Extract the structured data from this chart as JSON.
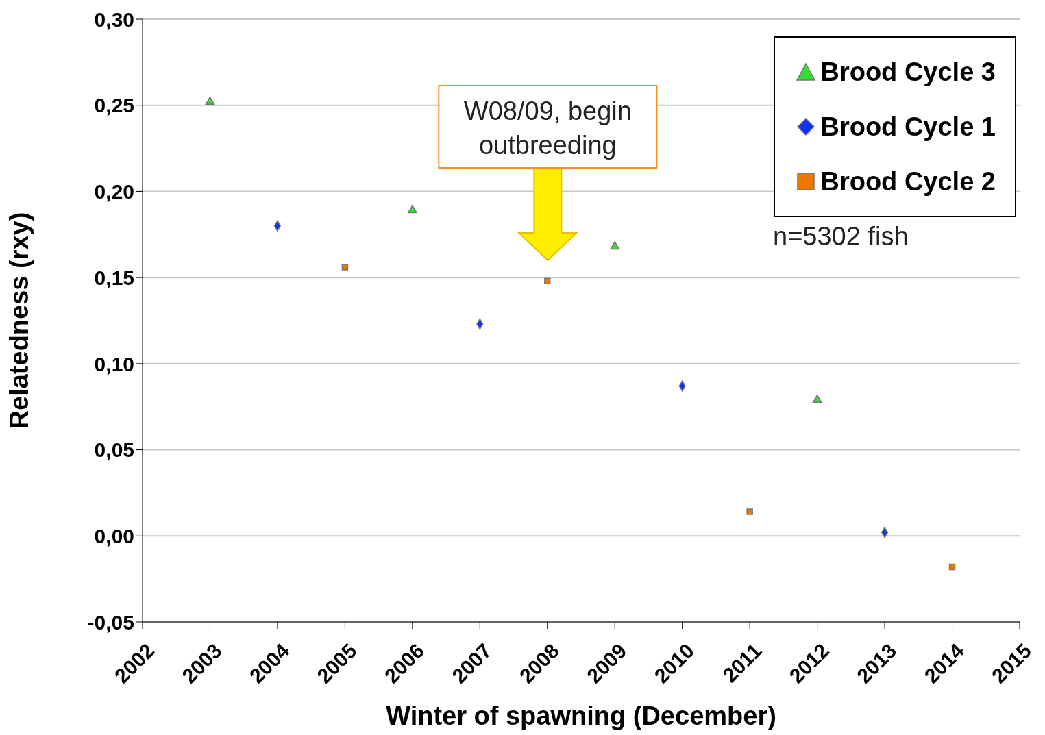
{
  "chart_data": {
    "type": "scatter",
    "xlabel": "Winter of spawning (December)",
    "ylabel": "Relatedness (rxy)",
    "xlim": [
      2002,
      2015
    ],
    "xticks": [
      2002,
      2003,
      2004,
      2005,
      2006,
      2007,
      2008,
      2009,
      2010,
      2011,
      2012,
      2013,
      2014,
      2015
    ],
    "ylim": [
      -0.05,
      0.3
    ],
    "yticks": [
      {
        "value": -0.05,
        "label": "-0,05"
      },
      {
        "value": 0,
        "label": "0,00"
      },
      {
        "value": 0.05,
        "label": "0,05"
      },
      {
        "value": 0.1,
        "label": "0,10"
      },
      {
        "value": 0.15,
        "label": "0,15"
      },
      {
        "value": 0.2,
        "label": "0,20"
      },
      {
        "value": 0.25,
        "label": "0,25"
      },
      {
        "value": 0.3,
        "label": "0,30"
      }
    ],
    "grid": "y",
    "legend": "top right",
    "series": [
      {
        "name": "Brood Cycle 3",
        "color": "#33dd33",
        "marker": "triangle",
        "x": [
          2003,
          2006,
          2009,
          2012
        ],
        "values": [
          0.252,
          0.189,
          0.168,
          0.079
        ]
      },
      {
        "name": "Brood Cycle 1",
        "color": "#1133ee",
        "marker": "diamond",
        "x": [
          2004,
          2007,
          2010,
          2013
        ],
        "values": [
          0.18,
          0.123,
          0.087,
          0.002
        ]
      },
      {
        "name": "Brood Cycle 2",
        "color": "#ee7700",
        "marker": "square",
        "x": [
          2005,
          2008,
          2011,
          2014
        ],
        "values": [
          0.156,
          0.148,
          0.014,
          -0.018
        ]
      }
    ],
    "annotations": [
      "W08/09, begin outbreeding",
      "n=5302 fish"
    ]
  }
}
